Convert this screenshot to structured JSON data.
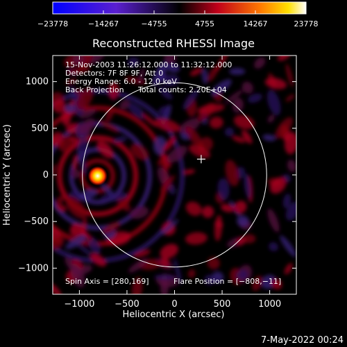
{
  "chart_data": {
    "type": "heatmap",
    "title": "Reconstructed RHESSI Image",
    "xlabel": "Heliocentric X (arcsec)",
    "ylabel": "Heliocentric Y (arcsec)",
    "xlim": [
      -1280,
      1280
    ],
    "ylim": [
      -1280,
      1280
    ],
    "xticks": [
      -1000,
      -500,
      0,
      500,
      1000
    ],
    "xtick_labels": [
      "−1000",
      "−500",
      "0",
      "500",
      "1000"
    ],
    "yticks": [
      -1000,
      -500,
      0,
      500,
      1000
    ],
    "ytick_labels": [
      "−1000",
      "−500",
      "0",
      "500",
      "1000"
    ],
    "colorbar": {
      "min": -23778,
      "max": 23778,
      "ticks": [
        -23778,
        -14267,
        -4755,
        4755,
        14267,
        23778
      ],
      "tick_labels": [
        "−23778",
        "−14267",
        "−4755",
        "4755",
        "14267",
        "23778"
      ],
      "colormap": "blue-purple-red-yellow-white"
    },
    "annotations": {
      "time_range": "15-Nov-2003 11:26:12.000 to 11:32:12.000",
      "detectors": "Detectors: 7F 8F 9F, Att 0",
      "energy_range": "Energy Range: 6.0 - 12.0 keV",
      "method": "Back Projection",
      "total_counts": "Total counts: 2.20E+04",
      "spin_axis": "Spin Axis = [280,169]",
      "flare_position": "Flare Position = [−808,−11]"
    },
    "solar_limb_radius": 968,
    "source": {
      "x": -808,
      "y": -11
    },
    "spin_axis_marker": {
      "x": 280,
      "y": 169
    }
  },
  "footer": {
    "date": "7-May-2022 00:24"
  },
  "colors": {
    "background": "#000000",
    "foreground": "#ffffff"
  }
}
